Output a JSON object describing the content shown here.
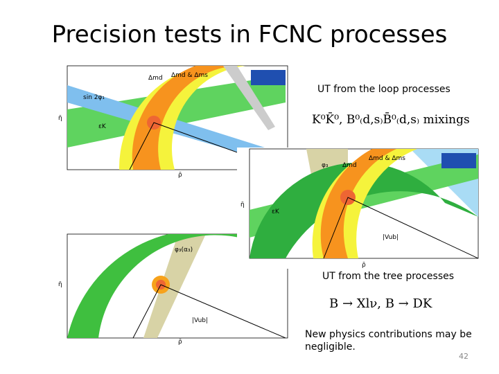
{
  "header": {
    "title": "Precision tests in FCNC processes"
  },
  "loop": {
    "heading": "UT from the loop processes",
    "formula": "K⁰K̄⁰, B⁰₍d,s₎B̄⁰₍d,s₎ mixings"
  },
  "tree": {
    "heading": "UT from the tree processes",
    "formula": "B → Xlν, B → DK"
  },
  "note": "New physics  contributions may be negligible.",
  "page_number": "42",
  "plots": [
    {
      "x_label": "ρ̄",
      "y_label": "η̄",
      "labels": [
        "sin 2φ₁",
        "εK",
        "Δmd",
        "Δmd & Δms"
      ]
    },
    {
      "x_label": "ρ̄",
      "y_label": "η̄",
      "labels": [
        "φ₃",
        "Δmd",
        "Δmd & Δms",
        "εK",
        "|Vub|"
      ]
    },
    {
      "x_label": "ρ̄",
      "y_label": "η̄",
      "labels": [
        "φ₃(α₃)",
        "|Vub|"
      ]
    }
  ]
}
